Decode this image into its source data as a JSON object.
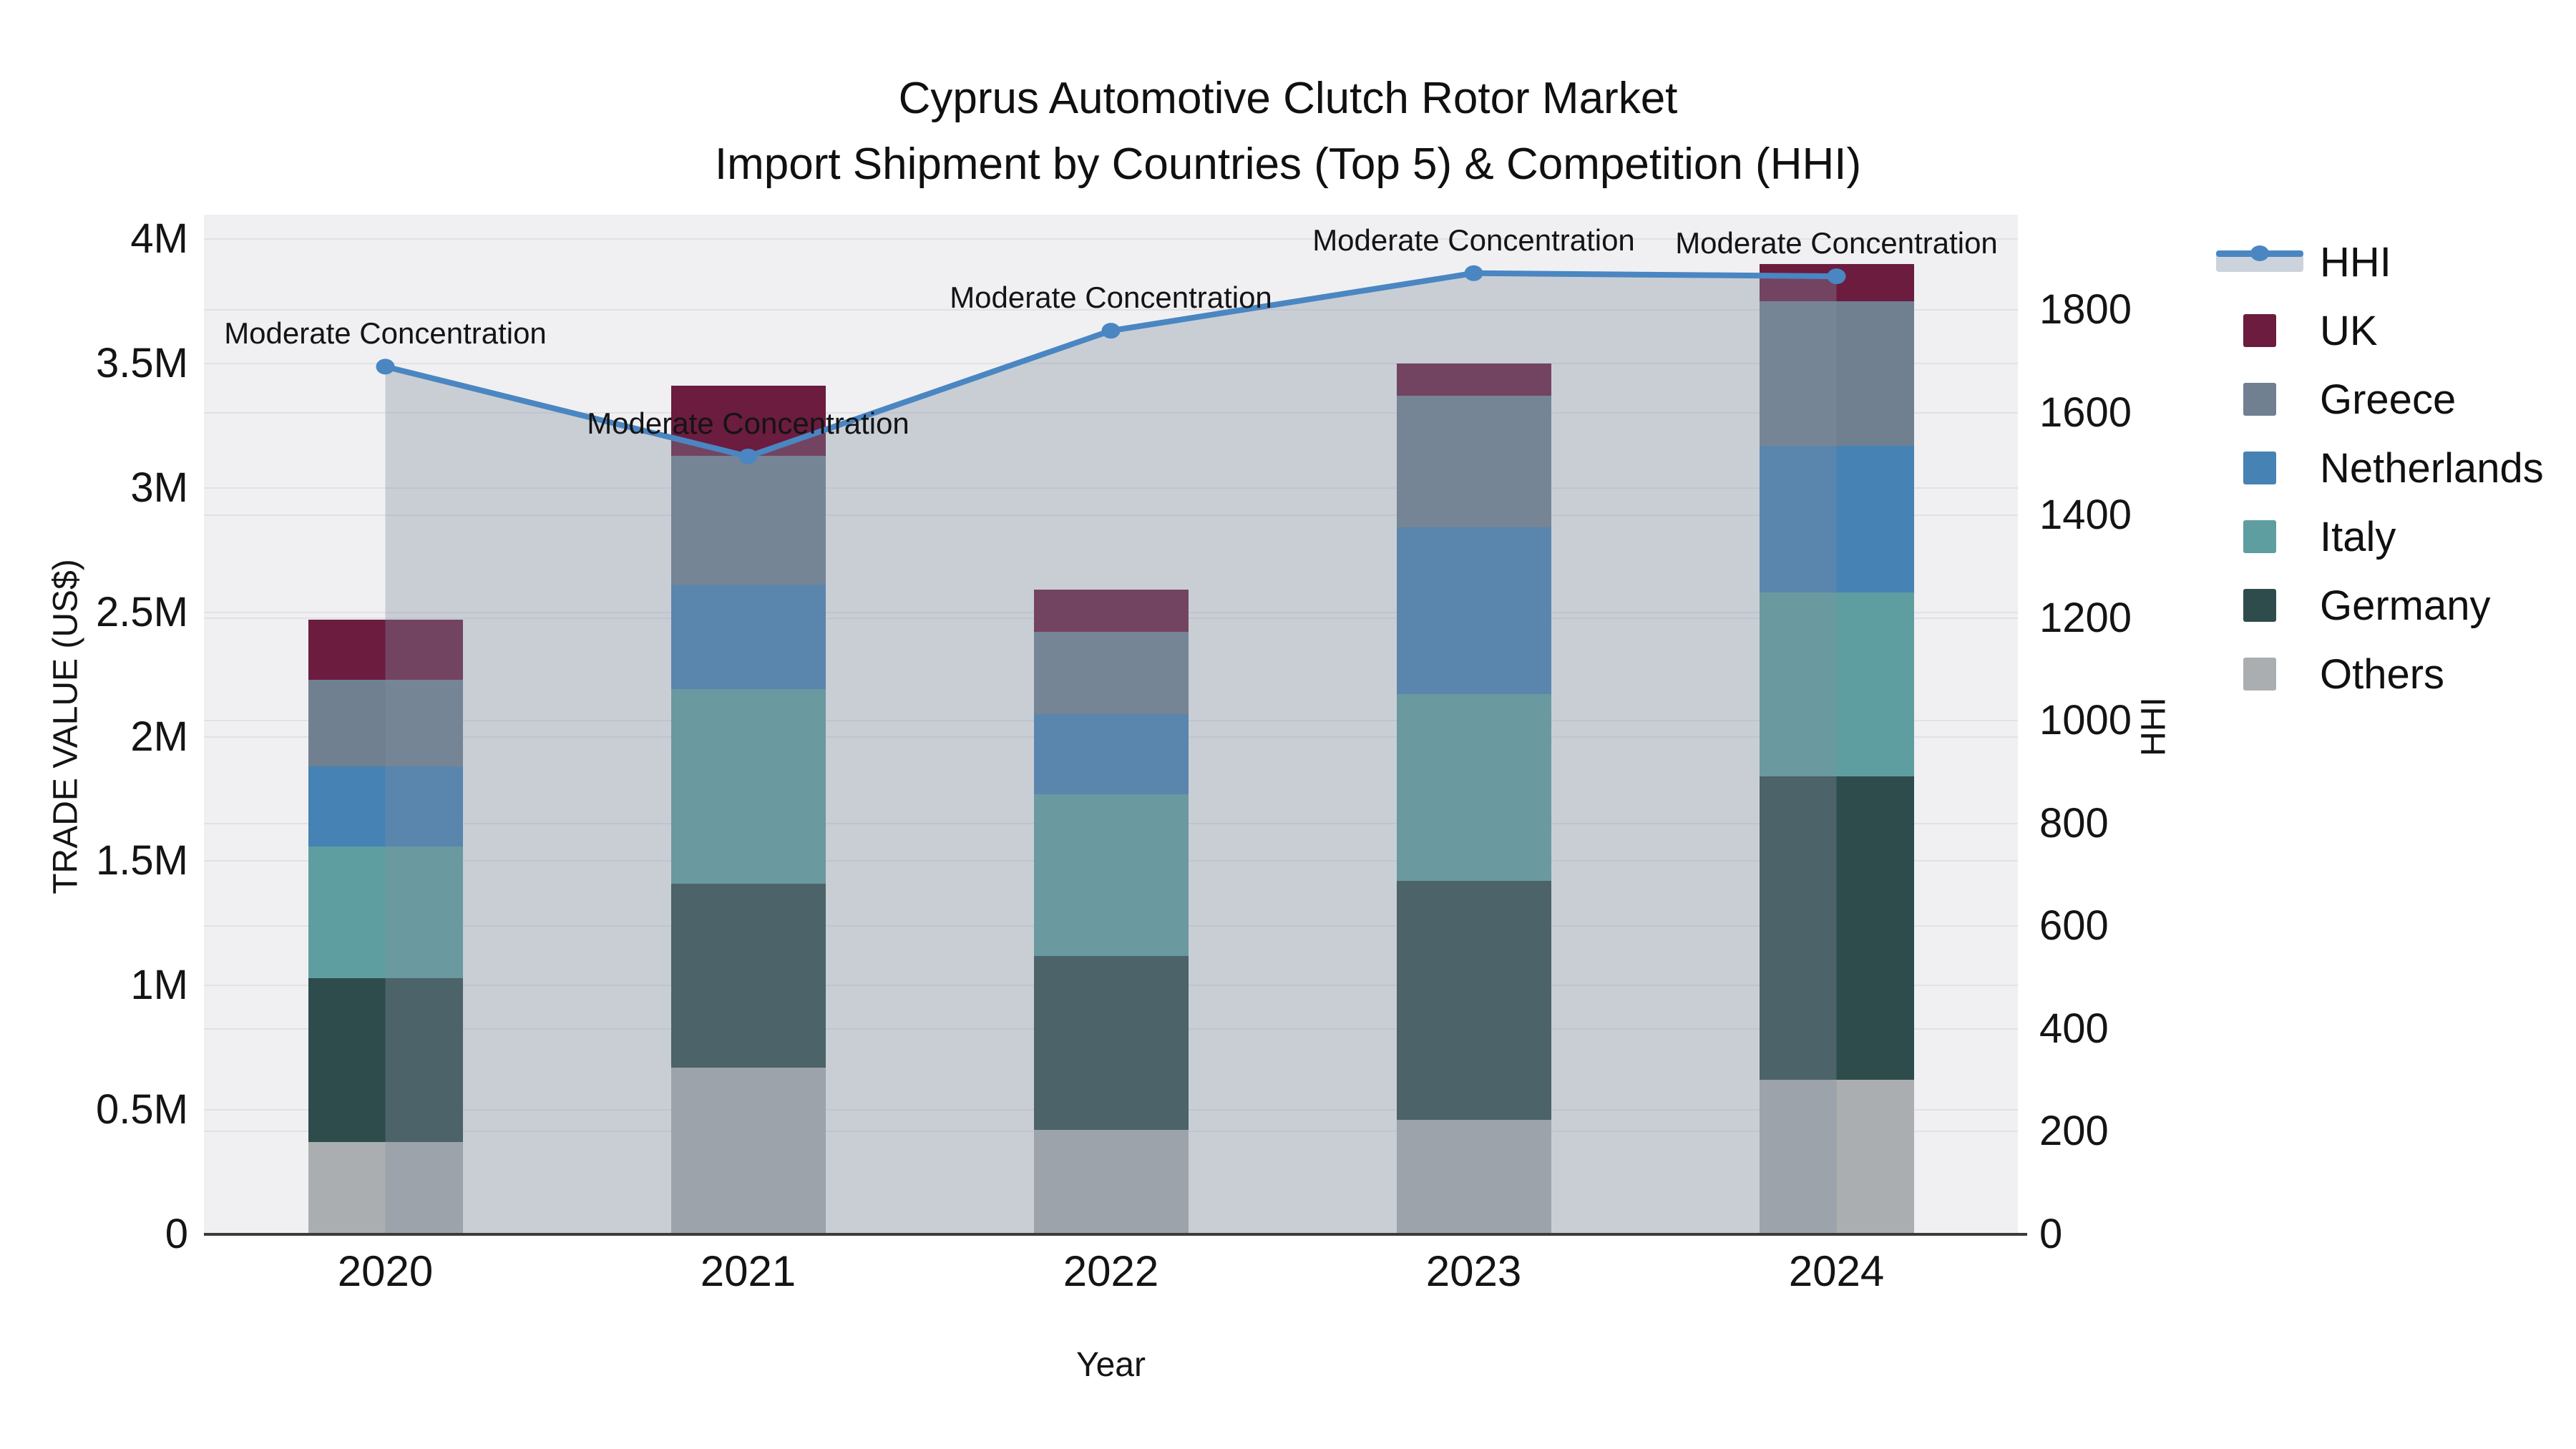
{
  "title": {
    "line1": "Cyprus Automotive Clutch Rotor Market",
    "line2": "Import Shipment by Countries (Top 5) & Competition (HHI)"
  },
  "axes": {
    "x": {
      "title": "Year",
      "categories": [
        "2020",
        "2021",
        "2022",
        "2023",
        "2024"
      ]
    },
    "y_left": {
      "title": "TRADE VALUE (US$)",
      "tick_labels": [
        "0",
        "0.5M",
        "1M",
        "1.5M",
        "2M",
        "2.5M",
        "3M",
        "3.5M",
        "4M"
      ],
      "tick_values": [
        0,
        0.5,
        1,
        1.5,
        2,
        2.5,
        3,
        3.5,
        4
      ],
      "axis_max": 4.098,
      "unit": "million US$"
    },
    "y_right": {
      "title": "HHI",
      "tick_labels": [
        "0",
        "200",
        "400",
        "600",
        "800",
        "1000",
        "1200",
        "1400",
        "1600",
        "1800"
      ],
      "tick_values": [
        0,
        200,
        400,
        600,
        800,
        1000,
        1200,
        1400,
        1600,
        1800
      ],
      "axis_max": 1986
    }
  },
  "legend": {
    "items": [
      {
        "label": "HHI",
        "type": "line",
        "color": "#4a86c2"
      },
      {
        "label": "UK",
        "type": "swatch",
        "color": "#6b1c3f"
      },
      {
        "label": "Greece",
        "type": "swatch",
        "color": "#708090"
      },
      {
        "label": "Netherlands",
        "type": "swatch",
        "color": "#4682b4"
      },
      {
        "label": "Italy",
        "type": "swatch",
        "color": "#5f9ea0"
      },
      {
        "label": "Germany",
        "type": "swatch",
        "color": "#2e4c4c"
      },
      {
        "label": "Others",
        "type": "swatch",
        "color": "#abaeb0"
      }
    ]
  },
  "chart_data": {
    "type": "bar",
    "subtype": "stacked-bars-with-line-overlay",
    "categories": [
      "2020",
      "2021",
      "2022",
      "2023",
      "2024"
    ],
    "bar_value_unit": "million US$ (left axis, TRADE VALUE)",
    "series": [
      {
        "name": "Others",
        "color": "#abaeb0",
        "values": [
          0.37,
          0.67,
          0.42,
          0.46,
          0.62
        ]
      },
      {
        "name": "Germany",
        "color": "#2e4c4c",
        "values": [
          0.66,
          0.74,
          0.7,
          0.96,
          1.22
        ]
      },
      {
        "name": "Italy",
        "color": "#5f9ea0",
        "values": [
          0.53,
          0.78,
          0.65,
          0.75,
          0.74
        ]
      },
      {
        "name": "Netherlands",
        "color": "#4682b4",
        "values": [
          0.32,
          0.42,
          0.32,
          0.67,
          0.59
        ]
      },
      {
        "name": "Greece",
        "color": "#708090",
        "values": [
          0.35,
          0.52,
          0.33,
          0.53,
          0.58
        ]
      },
      {
        "name": "UK",
        "color": "#6b1c3f",
        "values": [
          0.24,
          0.28,
          0.17,
          0.13,
          0.15
        ]
      }
    ],
    "bar_totals": [
      2.47,
      3.41,
      2.59,
      3.5,
      3.9
    ],
    "line_series": {
      "name": "HHI",
      "axis": "right",
      "color": "#4a86c2",
      "area_fill": "rgba(130,142,160,0.35)",
      "values": [
        1690,
        1515,
        1760,
        1872,
        1866
      ],
      "point_annotations": [
        "Moderate Concentration",
        "Moderate Concentration",
        "Moderate Concentration",
        "Moderate Concentration",
        "Moderate Concentration"
      ]
    },
    "ylim_left": [
      0,
      4.098
    ],
    "ylim_right": [
      0,
      1986
    ],
    "grid": "on",
    "plot_background": "#f0f0f2",
    "legend_position": "right"
  }
}
